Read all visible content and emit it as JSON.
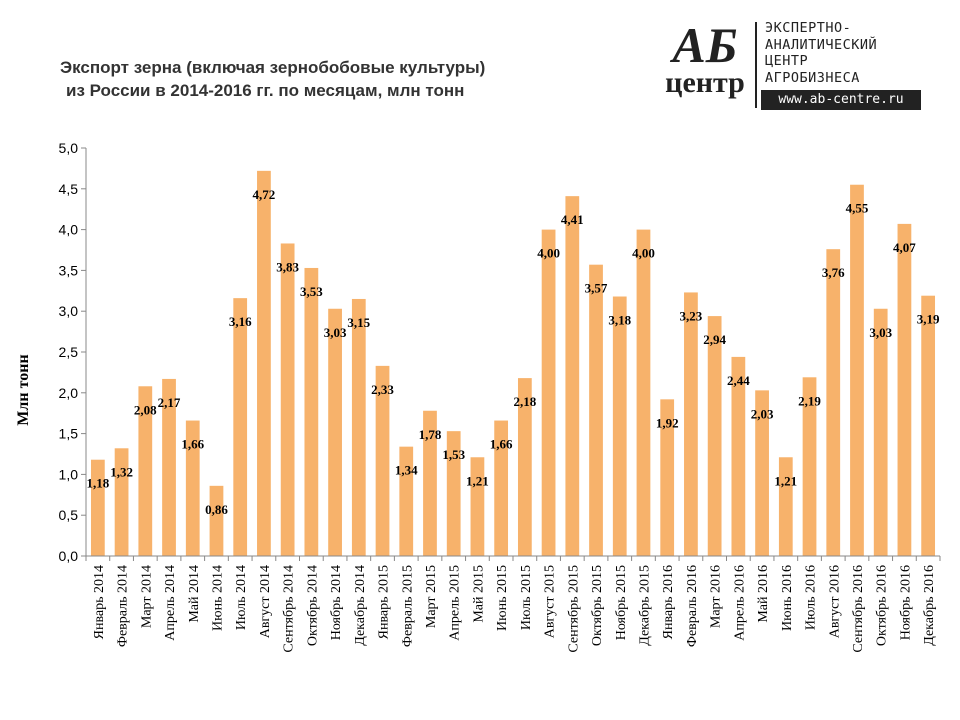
{
  "title_line1": "Экспорт зерна (включая зернобобовые культуры)",
  "title_line2": "из России в 2014-2016 гг. по месяцам, млн тонн",
  "logo": {
    "mark_top": "АБ",
    "mark_bottom": "центр",
    "lines": [
      "ЭКСПЕРТНО-",
      "АНАЛИТИЧЕСКИЙ",
      "ЦЕНТР",
      "АГРОБИЗНЕСА"
    ],
    "url": "www.ab-centre.ru"
  },
  "chart_data": {
    "type": "bar",
    "title": "Экспорт зерна (включая зернобобовые культуры) из России в 2014-2016 гг. по месяцам, млн тонн",
    "xlabel": "",
    "ylabel": "Млн тонн",
    "ylim": [
      0,
      5
    ],
    "yticks": [
      "0,0",
      "0,5",
      "1,0",
      "1,5",
      "2,0",
      "2,5",
      "3,0",
      "3,5",
      "4,0",
      "4,5",
      "5,0"
    ],
    "grid": false,
    "legend": "none",
    "bar_color": "#F7B26B",
    "categories": [
      "Январь 2014",
      "Февраль 2014",
      "Март 2014",
      "Апрель 2014",
      "Май 2014",
      "Июнь 2014",
      "Июль 2014",
      "Август 2014",
      "Сентябрь 2014",
      "Октябрь 2014",
      "Ноябрь 2014",
      "Декабрь 2014",
      "Январь 2015",
      "Февраль 2015",
      "Март 2015",
      "Апрель 2015",
      "Май 2015",
      "Июнь 2015",
      "Июль 2015",
      "Август 2015",
      "Сентябрь 2015",
      "Октябрь 2015",
      "Ноябрь 2015",
      "Декабрь 2015",
      "Январь 2016",
      "Февраль 2016",
      "Март 2016",
      "Апрель 2016",
      "Май 2016",
      "Июнь 2016",
      "Июль 2016",
      "Август 2016",
      "Сентябрь 2016",
      "Октябрь 2016",
      "Ноябрь 2016",
      "Декабрь 2016"
    ],
    "values": [
      1.18,
      1.32,
      2.08,
      2.17,
      1.66,
      0.86,
      3.16,
      4.72,
      3.83,
      3.53,
      3.03,
      3.15,
      2.33,
      1.34,
      1.78,
      1.53,
      1.21,
      1.66,
      2.18,
      4.0,
      4.41,
      3.57,
      3.18,
      4.0,
      1.92,
      3.23,
      2.94,
      2.44,
      2.03,
      1.21,
      2.19,
      3.76,
      4.55,
      3.03,
      4.07,
      3.19
    ],
    "data_labels": [
      "1,18",
      "1,32",
      "2,08",
      "2,17",
      "1,66",
      "0,86",
      "3,16",
      "4,72",
      "3,83",
      "3,53",
      "3,03",
      "3,15",
      "2,33",
      "1,34",
      "1,78",
      "1,53",
      "1,21",
      "1,66",
      "2,18",
      "4,00",
      "4,41",
      "3,57",
      "3,18",
      "4,00",
      "1,92",
      "3,23",
      "2,94",
      "2,44",
      "2,03",
      "1,21",
      "2,19",
      "3,76",
      "4,55",
      "3,03",
      "4,07",
      "3,19"
    ]
  }
}
